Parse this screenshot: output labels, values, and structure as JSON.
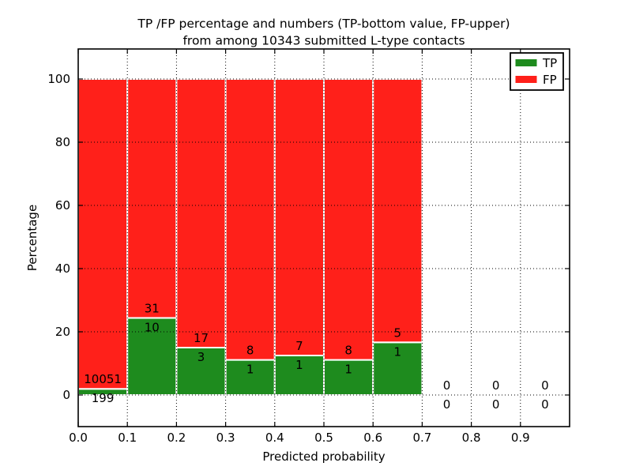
{
  "chart_data": {
    "type": "bar",
    "stacked": true,
    "title_line1": "TP /FP percentage and numbers (TP-bottom value, FP-upper)",
    "title_line2": "from among 10343 submitted L-type contacts",
    "xlabel": "Predicted probability",
    "ylabel": "Percentage",
    "total_contacts": 10343,
    "x_tick_labels": [
      "0.0",
      "0.1",
      "0.2",
      "0.3",
      "0.4",
      "0.5",
      "0.6",
      "0.7",
      "0.8",
      "0.9"
    ],
    "y_tick_labels": [
      "0",
      "20",
      "40",
      "60",
      "80",
      "100"
    ],
    "xlim": [
      0,
      1.0
    ],
    "ylim": [
      -10,
      109.5
    ],
    "grid": "dotted",
    "bin_edges": [
      0.0,
      0.1,
      0.2,
      0.3,
      0.4,
      0.5,
      0.6,
      0.7,
      0.8,
      0.9,
      1.0
    ],
    "legend": {
      "position": "upper right",
      "tp_label": "TP",
      "fp_label": "FP"
    },
    "colors": {
      "tp": "#1e8b1e",
      "fp": "#ff201a"
    },
    "series": [
      {
        "name": "TP",
        "role": "bottom",
        "counts": [
          199,
          10,
          3,
          1,
          1,
          1,
          1,
          0,
          0,
          0
        ],
        "pct": [
          1.94,
          24.39,
          15.0,
          11.11,
          12.5,
          11.11,
          16.67,
          0,
          0,
          0
        ]
      },
      {
        "name": "FP",
        "role": "upper",
        "counts": [
          10051,
          31,
          17,
          8,
          7,
          8,
          5,
          0,
          0,
          0
        ],
        "pct": [
          98.06,
          75.61,
          85.0,
          88.89,
          87.5,
          88.89,
          83.33,
          0,
          0,
          0
        ]
      }
    ]
  }
}
